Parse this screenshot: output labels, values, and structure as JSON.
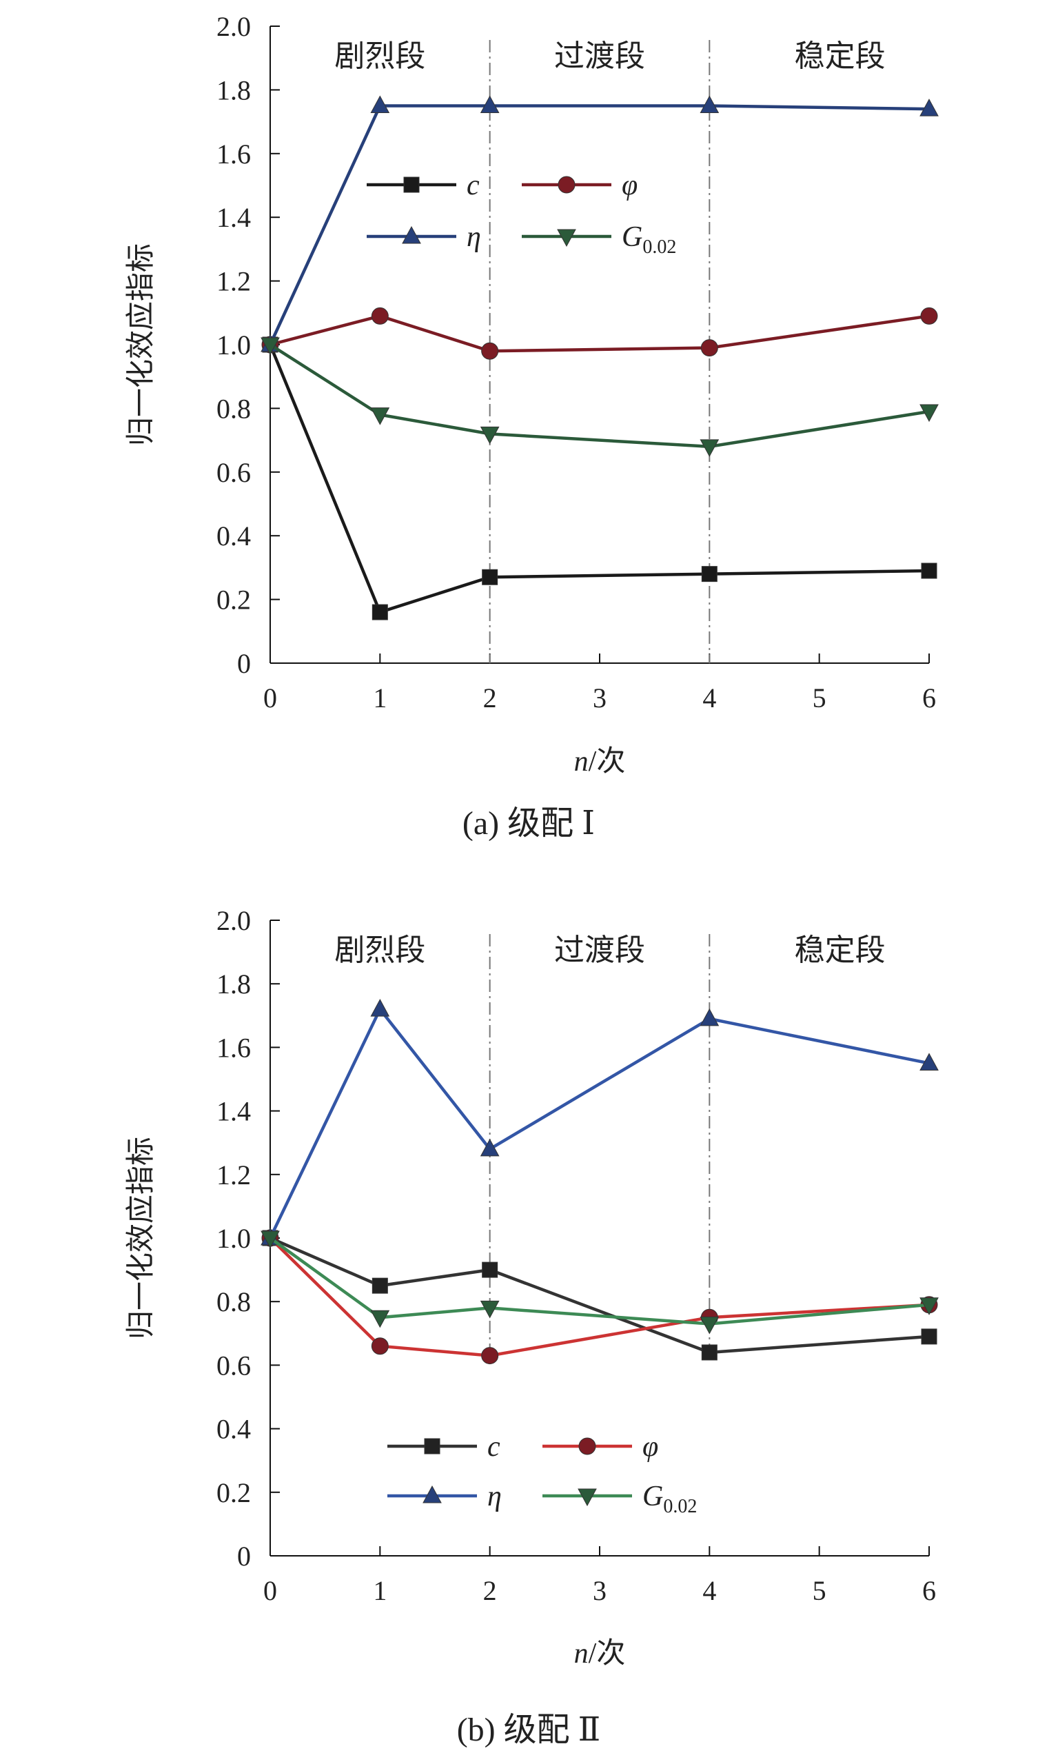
{
  "chart_data": [
    {
      "type": "line",
      "caption": "(a) 级配 Ⅰ",
      "ylabel": "归一化效应指标",
      "xlabel_italic": "n",
      "xlabel_rest": "/次",
      "x_ticks": [
        "0",
        "1",
        "2",
        "3",
        "4",
        "5",
        "6"
      ],
      "y_ticks": [
        "0",
        "0.2",
        "0.4",
        "0.6",
        "0.8",
        "1.0",
        "1.2",
        "1.4",
        "1.6",
        "1.8",
        "2.0"
      ],
      "ylim": [
        0,
        2.0
      ],
      "phases": [
        "剧烈段",
        "过渡段",
        "稳定段"
      ],
      "legend_position": "upper-middle",
      "x_positions": [
        0,
        1,
        2,
        4,
        6
      ],
      "series": [
        {
          "name": "c",
          "name_sub": "",
          "marker": "square",
          "color": "#1a1a1a",
          "marker_color": "#1a1a1a",
          "values": [
            1.0,
            0.16,
            0.27,
            0.28,
            0.29
          ]
        },
        {
          "name": "φ",
          "name_sub": "",
          "marker": "circle",
          "color": "#7b1c24",
          "marker_color": "#7b1c24",
          "values": [
            1.0,
            1.09,
            0.98,
            0.99,
            1.09
          ]
        },
        {
          "name": "η",
          "name_sub": "",
          "marker": "triangle-up",
          "color": "#27407a",
          "marker_color": "#27407a",
          "values": [
            1.0,
            1.75,
            1.75,
            1.75,
            1.74
          ]
        },
        {
          "name": "G",
          "name_sub": "0.02",
          "marker": "triangle-down",
          "color": "#2b5a3a",
          "marker_color": "#2b5a3a",
          "values": [
            1.0,
            0.78,
            0.72,
            0.68,
            0.79
          ]
        }
      ]
    },
    {
      "type": "line",
      "caption": "(b) 级配 Ⅱ",
      "ylabel": "归一化效应指标",
      "xlabel_italic": "n",
      "xlabel_rest": "/次",
      "x_ticks": [
        "0",
        "1",
        "2",
        "3",
        "4",
        "5",
        "6"
      ],
      "y_ticks": [
        "0",
        "0.2",
        "0.4",
        "0.6",
        "0.8",
        "1.0",
        "1.2",
        "1.4",
        "1.6",
        "1.8",
        "2.0"
      ],
      "ylim": [
        0,
        2.0
      ],
      "phases": [
        "剧烈段",
        "过渡段",
        "稳定段"
      ],
      "legend_position": "lower-middle",
      "x_positions": [
        0,
        1,
        2,
        4,
        6
      ],
      "series": [
        {
          "name": "c",
          "name_sub": "",
          "marker": "square",
          "color": "#333333",
          "marker_color": "#222222",
          "values": [
            1.0,
            0.85,
            0.9,
            0.64,
            0.69
          ]
        },
        {
          "name": "φ",
          "name_sub": "",
          "marker": "circle",
          "color": "#cc3333",
          "marker_color": "#7b1c24",
          "values": [
            1.0,
            0.66,
            0.63,
            0.75,
            0.79
          ]
        },
        {
          "name": "η",
          "name_sub": "",
          "marker": "triangle-up",
          "color": "#3356a6",
          "marker_color": "#27407a",
          "values": [
            1.0,
            1.72,
            1.28,
            1.69,
            1.55
          ]
        },
        {
          "name": "G",
          "name_sub": "0.02",
          "marker": "triangle-down",
          "color": "#3d8a55",
          "marker_color": "#2b5a3a",
          "values": [
            1.0,
            0.75,
            0.78,
            0.73,
            0.79
          ]
        }
      ]
    }
  ]
}
